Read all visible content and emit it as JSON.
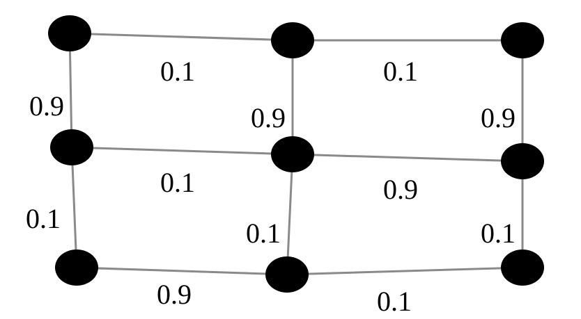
{
  "colors": {
    "edge": "#8a8a8a",
    "node": "#000000",
    "background": "#ffffff"
  },
  "nodes": [
    {
      "id": "n00",
      "row": 0,
      "col": 0
    },
    {
      "id": "n01",
      "row": 0,
      "col": 1
    },
    {
      "id": "n02",
      "row": 0,
      "col": 2
    },
    {
      "id": "n10",
      "row": 1,
      "col": 0
    },
    {
      "id": "n11",
      "row": 1,
      "col": 1
    },
    {
      "id": "n12",
      "row": 1,
      "col": 2
    },
    {
      "id": "n20",
      "row": 2,
      "col": 0
    },
    {
      "id": "n21",
      "row": 2,
      "col": 1
    },
    {
      "id": "n22",
      "row": 2,
      "col": 2
    }
  ],
  "edges": [
    {
      "id": "e-n00-n01",
      "from": "n00",
      "to": "n01",
      "weight": "0.1"
    },
    {
      "id": "e-n01-n02",
      "from": "n01",
      "to": "n02",
      "weight": "0.1"
    },
    {
      "id": "e-n00-n10",
      "from": "n00",
      "to": "n10",
      "weight": "0.9"
    },
    {
      "id": "e-n01-n11",
      "from": "n01",
      "to": "n11",
      "weight": "0.9"
    },
    {
      "id": "e-n02-n12",
      "from": "n02",
      "to": "n12",
      "weight": "0.9"
    },
    {
      "id": "e-n10-n11",
      "from": "n10",
      "to": "n11",
      "weight": "0.1"
    },
    {
      "id": "e-n11-n12",
      "from": "n11",
      "to": "n12",
      "weight": "0.9"
    },
    {
      "id": "e-n10-n20",
      "from": "n10",
      "to": "n20",
      "weight": "0.1"
    },
    {
      "id": "e-n11-n21",
      "from": "n11",
      "to": "n21",
      "weight": "0.1"
    },
    {
      "id": "e-n12-n22",
      "from": "n12",
      "to": "n22",
      "weight": "0.1"
    },
    {
      "id": "e-n20-n21",
      "from": "n20",
      "to": "n21",
      "weight": "0.9"
    },
    {
      "id": "e-n21-n22",
      "from": "n21",
      "to": "n22",
      "weight": "0.1"
    }
  ]
}
